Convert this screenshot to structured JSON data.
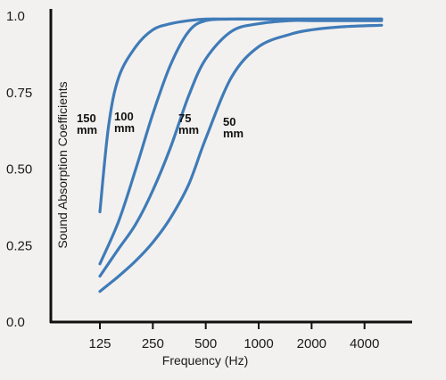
{
  "chart_data": {
    "type": "line",
    "xlabel": "Frequency (Hz)",
    "ylabel": "Sound Absorption Coefficients",
    "x_scale": "log",
    "xlim": [
      125,
      5000
    ],
    "ylim": [
      0,
      1.0
    ],
    "x_ticks": [
      "125",
      "250",
      "500",
      "1000",
      "2000",
      "4000"
    ],
    "x_tick_values": [
      125,
      250,
      500,
      1000,
      2000,
      4000
    ],
    "y_ticks": [
      "0.0",
      "0.25",
      "0.50",
      "0.75",
      "1.0"
    ],
    "y_tick_values": [
      0,
      0.25,
      0.5,
      0.75,
      1.0
    ],
    "grid": false,
    "line_color": "#3f7bb8",
    "series": [
      {
        "name": "150 mm",
        "label_lines": [
          "150",
          "mm"
        ],
        "x": [
          125,
          140,
          160,
          200,
          250,
          315,
          400,
          500,
          700,
          1000,
          2000,
          5000
        ],
        "y": [
          0.36,
          0.64,
          0.8,
          0.9,
          0.955,
          0.975,
          0.985,
          0.99,
          0.99,
          0.99,
          0.99,
          0.99
        ]
      },
      {
        "name": "100 mm",
        "label_lines": [
          "100",
          "mm"
        ],
        "x": [
          125,
          160,
          200,
          250,
          315,
          400,
          500,
          700,
          1000,
          2000,
          5000
        ],
        "y": [
          0.19,
          0.33,
          0.5,
          0.68,
          0.84,
          0.95,
          0.985,
          0.99,
          0.99,
          0.99,
          0.99
        ]
      },
      {
        "name": "75 mm",
        "label_lines": [
          "75",
          "mm"
        ],
        "x": [
          125,
          160,
          200,
          250,
          315,
          400,
          500,
          700,
          1000,
          1500,
          2000,
          5000
        ],
        "y": [
          0.15,
          0.24,
          0.32,
          0.43,
          0.57,
          0.74,
          0.86,
          0.95,
          0.975,
          0.985,
          0.985,
          0.985
        ]
      },
      {
        "name": "50 mm",
        "label_lines": [
          "50",
          "mm"
        ],
        "x": [
          125,
          160,
          200,
          250,
          315,
          400,
          500,
          700,
          1000,
          1500,
          2000,
          3000,
          5000
        ],
        "y": [
          0.1,
          0.15,
          0.2,
          0.26,
          0.34,
          0.45,
          0.6,
          0.8,
          0.9,
          0.94,
          0.955,
          0.965,
          0.97
        ]
      }
    ]
  }
}
